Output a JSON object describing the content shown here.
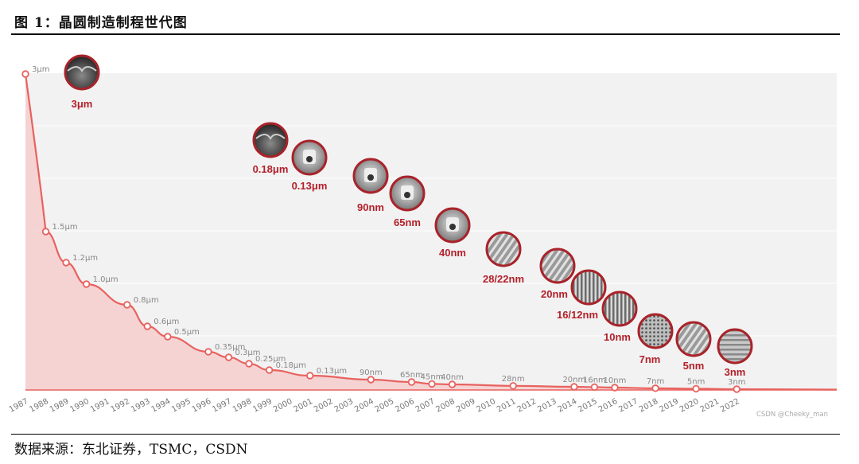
{
  "figure": {
    "title": "图 1：晶圆制造制程世代图",
    "source": "数据来源：东北证券，TSMC，CSDN",
    "watermark": "CSDN @Cheeky_man"
  },
  "colors": {
    "line": "#e8625f",
    "fill": "#f5cfcf",
    "ring": "#a8232a",
    "label": "#b3202a",
    "panel": "#f2f2f2"
  },
  "chart_data": {
    "type": "area",
    "x_tick_labels": [
      "1987",
      "1988",
      "1989",
      "1990",
      "1991",
      "1992",
      "1993",
      "1994",
      "1995",
      "1996",
      "1997",
      "1998",
      "1999",
      "2000",
      "2001",
      "2002",
      "2003",
      "2004",
      "2005",
      "2006",
      "2007",
      "2008",
      "2009",
      "2010",
      "2011",
      "2012",
      "2013",
      "2014",
      "2015",
      "2016",
      "2017",
      "2018",
      "2019",
      "2020",
      "2021",
      "2022"
    ],
    "points": [
      {
        "x": "1987",
        "y": 3.0,
        "label": "3μm"
      },
      {
        "x": "1988",
        "y": 1.5,
        "label": "1.5μm"
      },
      {
        "x": "1989",
        "y": 1.2,
        "label": "1.2μm"
      },
      {
        "x": "1990",
        "y": 1.0,
        "label": "1.0μm"
      },
      {
        "x": "1992",
        "y": 0.8,
        "label": "0.8μm"
      },
      {
        "x": "1993",
        "y": 0.6,
        "label": "0.6μm"
      },
      {
        "x": "1994",
        "y": 0.5,
        "label": "0.5μm"
      },
      {
        "x": "1996",
        "y": 0.35,
        "label": "0.35μm"
      },
      {
        "x": "1997",
        "y": 0.3,
        "label": "0.3μm"
      },
      {
        "x": "1998",
        "y": 0.25,
        "label": "0.25μm"
      },
      {
        "x": "1999",
        "y": 0.18,
        "label": "0.18μm"
      },
      {
        "x": "2001",
        "y": 0.13,
        "label": "0.13μm"
      },
      {
        "x": "2004",
        "y": 0.09,
        "label": "90nm"
      },
      {
        "x": "2006",
        "y": 0.065,
        "label": "65nm"
      },
      {
        "x": "2007",
        "y": 0.045,
        "label": "45nm"
      },
      {
        "x": "2008",
        "y": 0.04,
        "label": "40nm"
      },
      {
        "x": "2011",
        "y": 0.028,
        "label": "28nm"
      },
      {
        "x": "2014",
        "y": 0.02,
        "label": "20nm"
      },
      {
        "x": "2015",
        "y": 0.016,
        "label": "16nm"
      },
      {
        "x": "2016",
        "y": 0.01,
        "label": "10nm"
      },
      {
        "x": "2018",
        "y": 0.007,
        "label": "7nm"
      },
      {
        "x": "2020",
        "y": 0.005,
        "label": "5nm"
      },
      {
        "x": "2022",
        "y": 0.003,
        "label": "3nm"
      }
    ],
    "nodes": [
      {
        "label": "3μm",
        "style": "dark"
      },
      {
        "label": "0.18μm",
        "style": "dark"
      },
      {
        "label": "0.13μm",
        "style": "light"
      },
      {
        "label": "90nm",
        "style": "light"
      },
      {
        "label": "65nm",
        "style": "light"
      },
      {
        "label": "40nm",
        "style": "light"
      },
      {
        "label": "28/22nm",
        "style": "fin"
      },
      {
        "label": "20nm",
        "style": "fin"
      },
      {
        "label": "16/12nm",
        "style": "lines"
      },
      {
        "label": "10nm",
        "style": "lines"
      },
      {
        "label": "7nm",
        "style": "mesh"
      },
      {
        "label": "5nm",
        "style": "fin"
      },
      {
        "label": "3nm",
        "style": "stripes"
      }
    ],
    "grid": true
  }
}
